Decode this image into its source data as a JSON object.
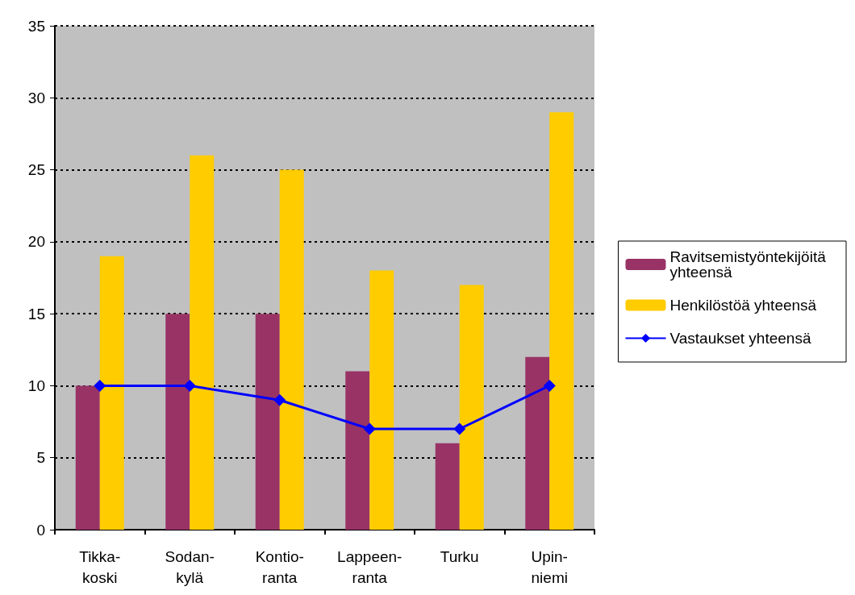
{
  "chart_data": {
    "type": "bar",
    "categories": [
      "Tikka-\nkoski",
      "Sodan-\nkylä",
      "Kontio-\nranta",
      "Lappeen-\nranta",
      "Turku",
      "Upin-\nniemi"
    ],
    "series": [
      {
        "name": "Ravitsemistyöntekijöitä yhteensä",
        "color": "#993366",
        "values": [
          10,
          15,
          15,
          11,
          6,
          12
        ]
      },
      {
        "name": "Henkilöstöä yhteensä",
        "color": "#ffcc00",
        "values": [
          19,
          26,
          25,
          18,
          17,
          29
        ]
      },
      {
        "name": "Vastaukset yhteensä",
        "type": "line",
        "color": "#0000ff",
        "values": [
          10,
          10,
          9,
          7,
          7,
          10
        ]
      }
    ],
    "ylim": [
      0,
      35
    ],
    "yticks": [
      0,
      5,
      10,
      15,
      20,
      25,
      30,
      35
    ],
    "grid": "y",
    "legend": "right",
    "marker": "diamond"
  }
}
